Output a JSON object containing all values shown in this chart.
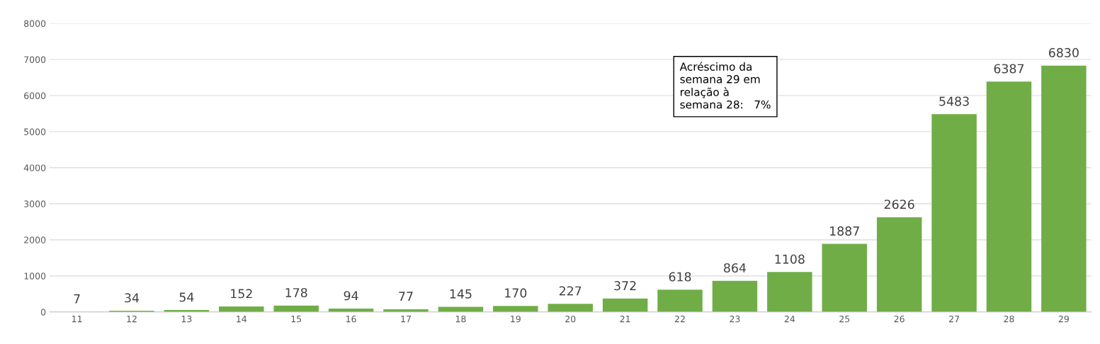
{
  "chart_data": {
    "type": "bar",
    "categories": [
      "11",
      "12",
      "13",
      "14",
      "15",
      "16",
      "17",
      "18",
      "19",
      "20",
      "21",
      "22",
      "23",
      "24",
      "25",
      "26",
      "27",
      "28",
      "29"
    ],
    "values": [
      7,
      34,
      54,
      152,
      178,
      94,
      77,
      145,
      170,
      227,
      372,
      618,
      864,
      1108,
      1887,
      2626,
      5483,
      6387,
      6830
    ],
    "color": "#70ad47",
    "ylim": [
      0,
      8000
    ],
    "yticks": [
      0,
      1000,
      2000,
      3000,
      4000,
      5000,
      6000,
      7000,
      8000
    ],
    "grid": "y",
    "data_labels": true,
    "legend": false,
    "annotations": [
      "Acréscimo da\nsemana 29 em\nrelação à\nsemana 28:   7%"
    ]
  }
}
